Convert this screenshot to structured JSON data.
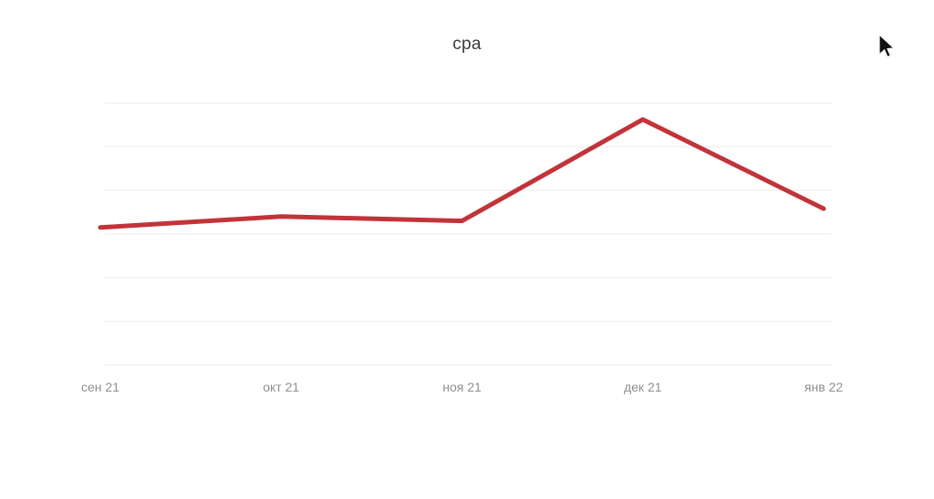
{
  "chart_data": {
    "type": "line",
    "title": "cpa",
    "categories": [
      "сен 21",
      "окт 21",
      "ноя 21",
      "дек 21",
      "янв 22"
    ],
    "series": [
      {
        "name": "cpa",
        "color": "#c2333a",
        "values": [
          3.15,
          3.4,
          3.3,
          5.62,
          3.58
        ]
      }
    ],
    "xlabel": "",
    "ylabel": "",
    "ylim": [
      0,
      6
    ],
    "gridlines": "horizontal",
    "gridline_count": 7,
    "grid_color": "#e9e9e9",
    "axis_label_color": "#8f8f8f",
    "legend_position": "none"
  },
  "icons": {
    "cursor": "mouse-pointer-icon"
  }
}
